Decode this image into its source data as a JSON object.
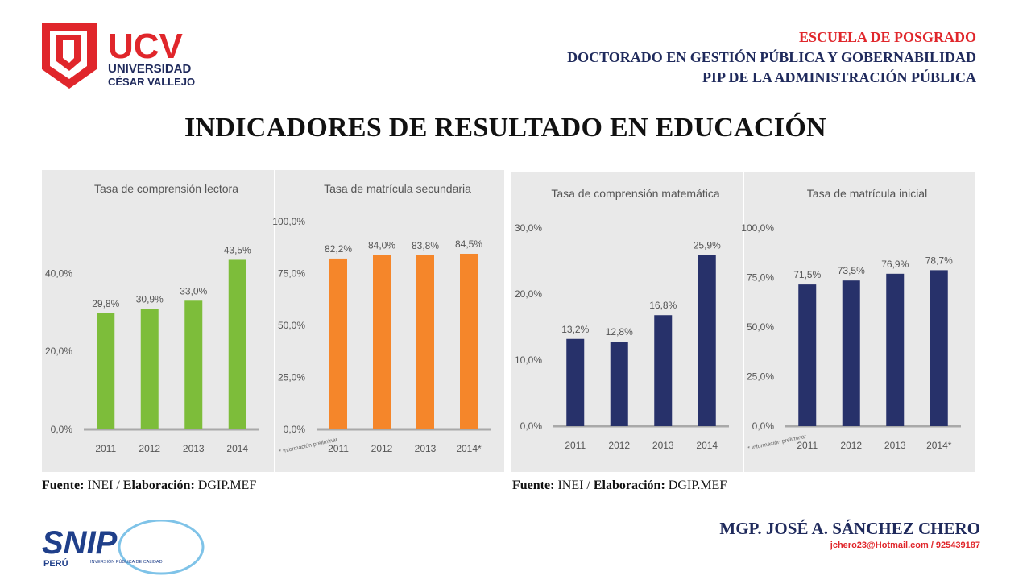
{
  "header": {
    "logo": {
      "name": "UCV",
      "line1": "UNIVERSIDAD",
      "line2": "CÉSAR VALLEJO"
    },
    "line1": "ESCUELA DE POSGRADO",
    "line2": "DOCTORADO EN GESTIÓN PÚBLICA Y GOBERNABILIDAD",
    "line3": "PIP DE LA ADMINISTRACIÓN PÚBLICA"
  },
  "title": "INDICADORES DE RESULTADO EN EDUCACIÓN",
  "sources": [
    {
      "label1": "Fuente:",
      "value1": " INEI / ",
      "label2": "Elaboración:",
      "value2": " DGIP.MEF"
    },
    {
      "label1": "Fuente:",
      "value1": " INEI / ",
      "label2": "Elaboración:",
      "value2": " DGIP.MEF"
    }
  ],
  "footer": {
    "name": "MGP. JOSÉ A. SÁNCHEZ CHERO",
    "contact": "jchero23@Hotmail.com / 925439187",
    "snip_logo": {
      "name": "SNIP",
      "country": "PERÚ",
      "tagline": "INVERSIÓN PÚBLICA DE CALIDAD"
    }
  },
  "colors": {
    "green": "#7dbd3a",
    "orange": "#f5862a",
    "navy": "#27316a",
    "red": "#e0262b",
    "panel": "#e9e9e9"
  },
  "chart_data": [
    {
      "type": "bar",
      "title": "Tasa de comprensión lectora",
      "categories": [
        "2011",
        "2012",
        "2013",
        "2014"
      ],
      "values": [
        29.8,
        30.9,
        33.0,
        43.5
      ],
      "value_labels": [
        "29,8%",
        "30,9%",
        "33,0%",
        "43,5%"
      ],
      "yticks": [
        "0,0%",
        "20,0%",
        "40,0%"
      ],
      "ytick_values": [
        0,
        20,
        40
      ],
      "ylim": [
        0,
        50
      ],
      "color": "#7dbd3a",
      "note": ""
    },
    {
      "type": "bar",
      "title": "Tasa de matrícula secundaria",
      "categories": [
        "2011",
        "2012",
        "2013",
        "2014*"
      ],
      "values": [
        82.2,
        84.0,
        83.8,
        84.5
      ],
      "value_labels": [
        "82,2%",
        "84,0%",
        "83,8%",
        "84,5%"
      ],
      "yticks": [
        "0,0%",
        "25,0%",
        "50,0%",
        "75,0%",
        "100,0%"
      ],
      "ytick_values": [
        0,
        25,
        50,
        75,
        100
      ],
      "ylim": [
        0,
        100
      ],
      "color": "#f5862a",
      "note": "* Información preliminar"
    },
    {
      "type": "bar",
      "title": "Tasa de comprensión matemática",
      "categories": [
        "2011",
        "2012",
        "2013",
        "2014"
      ],
      "values": [
        13.2,
        12.8,
        16.8,
        25.9
      ],
      "value_labels": [
        "13,2%",
        "12,8%",
        "16,8%",
        "25,9%"
      ],
      "yticks": [
        "0,0%",
        "10,0%",
        "20,0%",
        "30,0%"
      ],
      "ytick_values": [
        0,
        10,
        20,
        30
      ],
      "ylim": [
        0,
        30
      ],
      "color": "#27316a",
      "note": ""
    },
    {
      "type": "bar",
      "title": "Tasa de matrícula inicial",
      "categories": [
        "2011",
        "2012",
        "2013",
        "2014*"
      ],
      "values": [
        71.5,
        73.5,
        76.9,
        78.7
      ],
      "value_labels": [
        "71,5%",
        "73,5%",
        "76,9%",
        "78,7%"
      ],
      "yticks": [
        "0,0%",
        "25,0%",
        "50,0%",
        "75,0%",
        "100,0%"
      ],
      "ytick_values": [
        0,
        25,
        50,
        75,
        100
      ],
      "ylim": [
        0,
        100
      ],
      "color": "#27316a",
      "note": "* Información preliminar"
    }
  ]
}
